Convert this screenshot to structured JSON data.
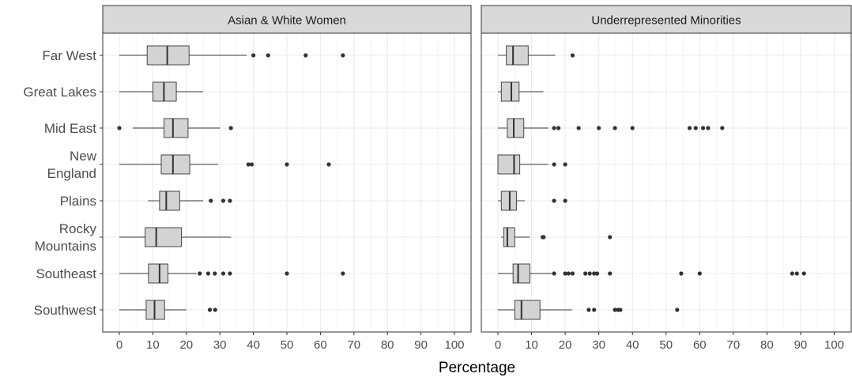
{
  "chart_data": {
    "type": "boxplot",
    "xlabel": "Percentage",
    "ylabel": "",
    "xlim": [
      -5,
      105
    ],
    "xticks": [
      0,
      10,
      20,
      30,
      40,
      50,
      60,
      70,
      80,
      90,
      100
    ],
    "grid": true,
    "legend": "none",
    "colors": {
      "box_fill": "#d3d3d3",
      "box_stroke": "#333333",
      "strip_fill": "#d9d9d9",
      "grid": "#ebebeb",
      "point": "#333333"
    },
    "categories": [
      "Far West",
      "Great Lakes",
      "Mid East",
      "New England",
      "Plains",
      "Rocky Mountains",
      "Southeast",
      "Southwest"
    ],
    "category_labels": [
      [
        "Far West"
      ],
      [
        "Great Lakes"
      ],
      [
        "Mid East"
      ],
      [
        "New",
        "England"
      ],
      [
        "Plains"
      ],
      [
        "Rocky",
        "Mountains"
      ],
      [
        "Southeast"
      ],
      [
        "Southwest"
      ]
    ],
    "panels": [
      {
        "title": "Asian & White Women",
        "boxes": [
          {
            "category": "Far West",
            "whisker_low": 0,
            "q1": 8.3,
            "median": 14.3,
            "q3": 20.8,
            "whisker_high": 38,
            "outliers": [
              40,
              44.4,
              55.6,
              66.7
            ]
          },
          {
            "category": "Great Lakes",
            "whisker_low": 0,
            "q1": 10,
            "median": 13.3,
            "q3": 17,
            "whisker_high": 25,
            "outliers": []
          },
          {
            "category": "Mid East",
            "whisker_low": 4,
            "q1": 13.3,
            "median": 16,
            "q3": 20.5,
            "whisker_high": 30,
            "outliers": [
              0,
              33.3
            ]
          },
          {
            "category": "New England",
            "whisker_low": 0,
            "q1": 12.5,
            "median": 16,
            "q3": 21,
            "whisker_high": 29.5,
            "outliers": [
              38.5,
              39.5,
              50,
              62.5
            ]
          },
          {
            "category": "Plains",
            "whisker_low": 8.5,
            "q1": 12,
            "median": 14,
            "q3": 18,
            "whisker_high": 25,
            "outliers": [
              27.3,
              31,
              33
            ]
          },
          {
            "category": "Rocky Mountains",
            "whisker_low": 0,
            "q1": 7.7,
            "median": 11,
            "q3": 18.5,
            "whisker_high": 33.3,
            "outliers": []
          },
          {
            "category": "Southeast",
            "whisker_low": 0,
            "q1": 8.7,
            "median": 12,
            "q3": 14.5,
            "whisker_high": 23,
            "outliers": [
              24,
              26.5,
              28.5,
              31,
              33,
              50,
              66.7
            ]
          },
          {
            "category": "Southwest",
            "whisker_low": 0,
            "q1": 8,
            "median": 10.5,
            "q3": 13.5,
            "whisker_high": 20,
            "outliers": [
              27,
              28.6
            ]
          }
        ]
      },
      {
        "title": "Underrepresented Minorities",
        "boxes": [
          {
            "category": "Far West",
            "whisker_low": 0,
            "q1": 2.5,
            "median": 4.5,
            "q3": 9,
            "whisker_high": 17,
            "outliers": [
              22.2
            ]
          },
          {
            "category": "Great Lakes",
            "whisker_low": 0,
            "q1": 1,
            "median": 4,
            "q3": 6.3,
            "whisker_high": 13.5,
            "outliers": []
          },
          {
            "category": "Mid East",
            "whisker_low": 0,
            "q1": 2.8,
            "median": 4.7,
            "q3": 7.7,
            "whisker_high": 15,
            "outliers": [
              16.7,
              18,
              24,
              30,
              34.8,
              40,
              57,
              58.8,
              61,
              62.5,
              66.7
            ]
          },
          {
            "category": "New England",
            "whisker_low": 0,
            "q1": 0,
            "median": 4.8,
            "q3": 6.5,
            "whisker_high": 15,
            "outliers": [
              16.7,
              20
            ]
          },
          {
            "category": "Plains",
            "whisker_low": 0,
            "q1": 1,
            "median": 3.5,
            "q3": 5.5,
            "whisker_high": 8,
            "outliers": [
              16.7,
              20
            ]
          },
          {
            "category": "Rocky Mountains",
            "whisker_low": 1,
            "q1": 1.7,
            "median": 2.8,
            "q3": 5,
            "whisker_high": 9.5,
            "outliers": [
              13.3,
              13.6,
              33.3
            ]
          },
          {
            "category": "Southeast",
            "whisker_low": 0,
            "q1": 4.5,
            "median": 6,
            "q3": 9.5,
            "whisker_high": 16,
            "outliers": [
              16.7,
              20,
              21,
              22.2,
              26,
              27.3,
              28.6,
              29.5,
              33.3,
              54.5,
              60,
              87.5,
              88.9,
              91
            ]
          },
          {
            "category": "Southwest",
            "whisker_low": 0,
            "q1": 5,
            "median": 7,
            "q3": 12.5,
            "whisker_high": 22,
            "outliers": [
              27,
              28.6,
              34.8,
              35.7,
              36.4,
              53.3
            ]
          }
        ]
      }
    ]
  }
}
